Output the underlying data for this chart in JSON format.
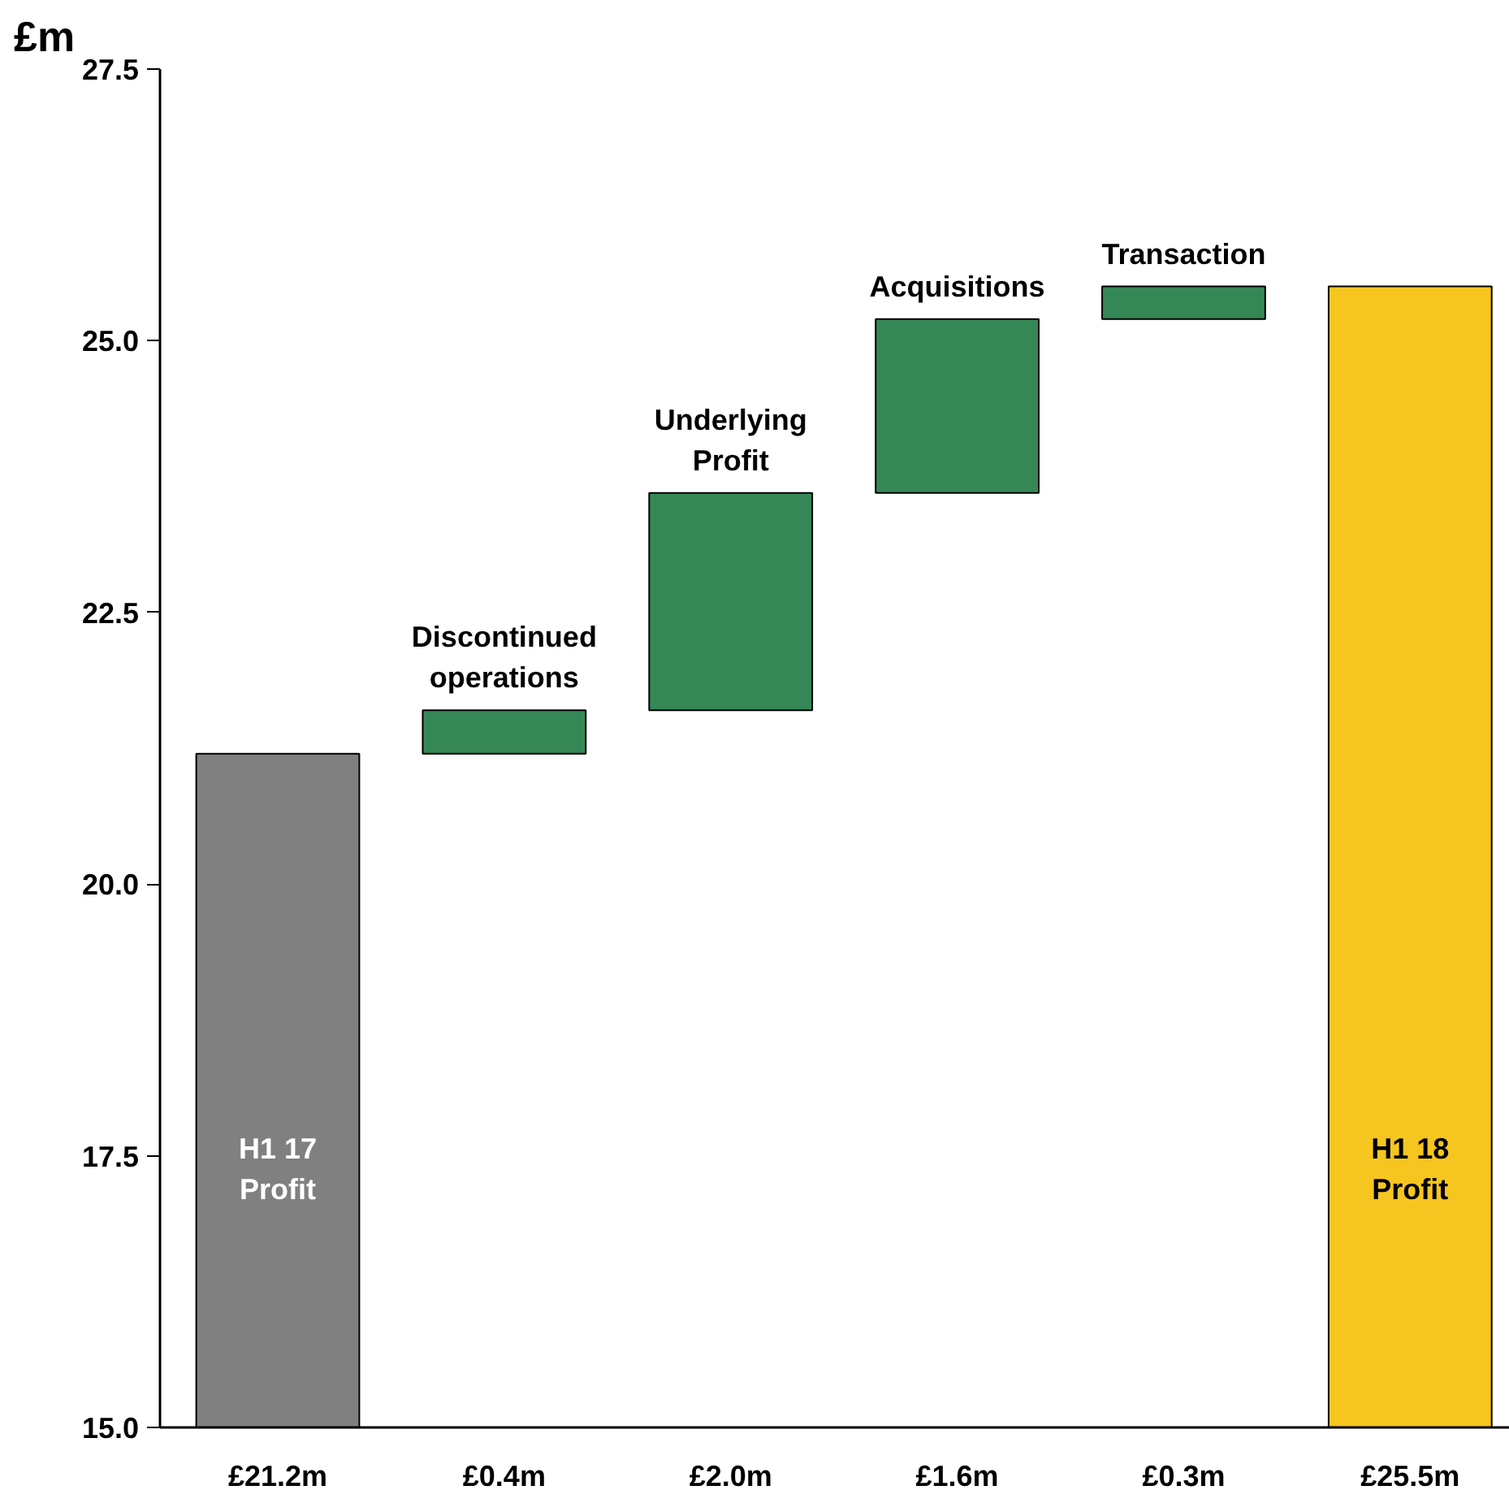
{
  "chart_data": {
    "type": "bar",
    "ylabel": "£m",
    "categories": [
      "H1 17\nProfit",
      "Discontinued\noperations",
      "Underlying\nProfit",
      "Acquisitions",
      "Transaction",
      "H1 18\nProfit"
    ],
    "values": [
      21.2,
      0.4,
      2.0,
      1.6,
      0.3,
      25.5
    ],
    "value_labels": [
      "£21.2m",
      "£0.4m",
      "£2.0m",
      "£1.6m",
      "£0.3m",
      "£25.5m"
    ],
    "base": [
      null,
      21.2,
      21.6,
      23.6,
      25.2,
      null
    ],
    "colors": [
      "#808080",
      "#358856",
      "#358856",
      "#358856",
      "#358856",
      "#f6c51f"
    ],
    "ylim": [
      15,
      27.5
    ],
    "yticks": [
      {
        "value": 15,
        "label": "15.0"
      },
      17.5,
      {
        "value": 20,
        "label": "20.0"
      },
      22.5,
      {
        "value": 25,
        "label": "25.0"
      },
      27.5
    ],
    "grid": false
  }
}
